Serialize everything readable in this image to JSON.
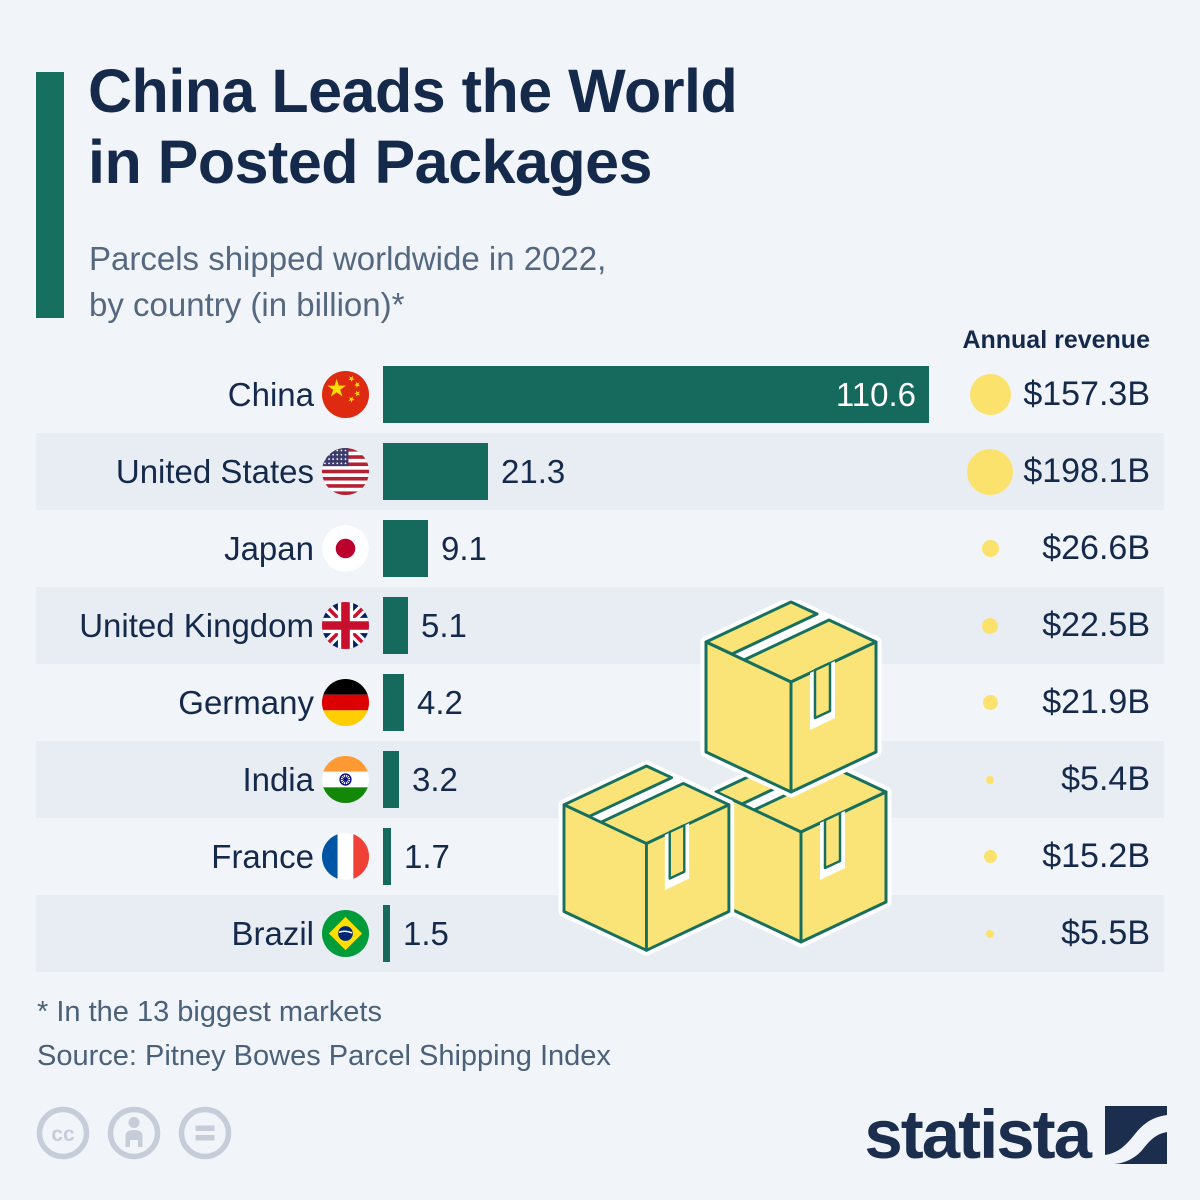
{
  "header": {
    "title_line1": "China Leads the World",
    "title_line2": "in Posted Packages",
    "subtitle_line1": "Parcels shipped worldwide in 2022,",
    "subtitle_line2": "by country (in billion)*"
  },
  "chart_data": {
    "type": "bar",
    "title": "China Leads the World in Posted Packages",
    "subtitle": "Parcels shipped worldwide in 2022, by country (in billion)*",
    "unit": "billion parcels",
    "max_value": 110.6,
    "revenue_column_header": "Annual revenue",
    "legend_position": "none",
    "grid": false,
    "rows": [
      {
        "country": "China",
        "flag": "cn",
        "parcels": 110.6,
        "parcels_label": "110.6",
        "revenue": 157.3,
        "revenue_label": "$157.3B"
      },
      {
        "country": "United States",
        "flag": "us",
        "parcels": 21.3,
        "parcels_label": "21.3",
        "revenue": 198.1,
        "revenue_label": "$198.1B"
      },
      {
        "country": "Japan",
        "flag": "jp",
        "parcels": 9.1,
        "parcels_label": "9.1",
        "revenue": 26.6,
        "revenue_label": "$26.6B"
      },
      {
        "country": "United Kingdom",
        "flag": "gb",
        "parcels": 5.1,
        "parcels_label": "5.1",
        "revenue": 22.5,
        "revenue_label": "$22.5B"
      },
      {
        "country": "Germany",
        "flag": "de",
        "parcels": 4.2,
        "parcels_label": "4.2",
        "revenue": 21.9,
        "revenue_label": "$21.9B"
      },
      {
        "country": "India",
        "flag": "in",
        "parcels": 3.2,
        "parcels_label": "3.2",
        "revenue": 5.4,
        "revenue_label": "$5.4B"
      },
      {
        "country": "France",
        "flag": "fr",
        "parcels": 1.7,
        "parcels_label": "1.7",
        "revenue": 15.2,
        "revenue_label": "$15.2B"
      },
      {
        "country": "Brazil",
        "flag": "br",
        "parcels": 1.5,
        "parcels_label": "1.5",
        "revenue": 5.5,
        "revenue_label": "$5.5B"
      }
    ]
  },
  "footer": {
    "footnote": "* In the 13 biggest markets",
    "source": "Source: Pitney Bowes Parcel Shipping Index",
    "brand": "statista"
  },
  "colors": {
    "background": "#f1f5fa",
    "row_stripe": "#e8edf4",
    "bar": "#15695d",
    "accent": "#17705f",
    "title": "#15294b",
    "subtitle": "#55687f",
    "footnote": "#4b6079",
    "bubble": "#fbe26d",
    "box_fill": "#fae478",
    "box_stroke": "#17705f",
    "cc": "#c6cdd8",
    "logo": "#1b2e4d"
  }
}
